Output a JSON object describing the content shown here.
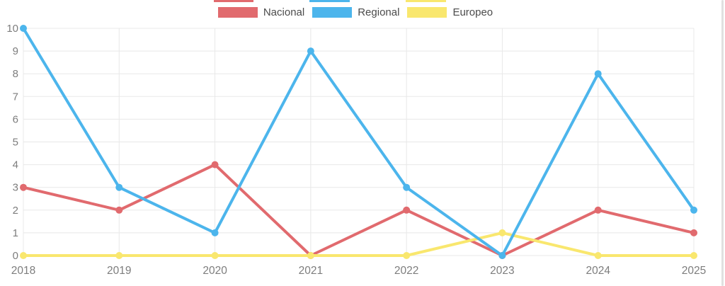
{
  "chart_data": {
    "type": "line",
    "title": "",
    "xlabel": "",
    "ylabel": "",
    "categories": [
      "2018",
      "2019",
      "2020",
      "2021",
      "2022",
      "2023",
      "2024",
      "2025"
    ],
    "series": [
      {
        "name": "Nacional",
        "color": "#e16a6e",
        "values": [
          3,
          2,
          4,
          0,
          2,
          0,
          2,
          1
        ]
      },
      {
        "name": "Regional",
        "color": "#4cb5ec",
        "values": [
          10,
          3,
          1,
          9,
          3,
          0,
          8,
          2
        ]
      },
      {
        "name": "Europeo",
        "color": "#f9e76e",
        "values": [
          0,
          0,
          0,
          0,
          0,
          1,
          0,
          0
        ]
      }
    ],
    "draw_order": [
      0,
      2,
      1
    ],
    "ylim": [
      0,
      10
    ],
    "y_ticks": [
      0,
      1,
      2,
      3,
      4,
      5,
      6,
      7,
      8,
      9,
      10
    ],
    "grid": true,
    "legend_position": "top"
  },
  "colors": {
    "background": "#ffffff",
    "grid": "#e8e8e8",
    "tick_label": "#7d7d7d",
    "legend_text": "#4b4b4b",
    "right_edge": "#e0e0e0"
  }
}
